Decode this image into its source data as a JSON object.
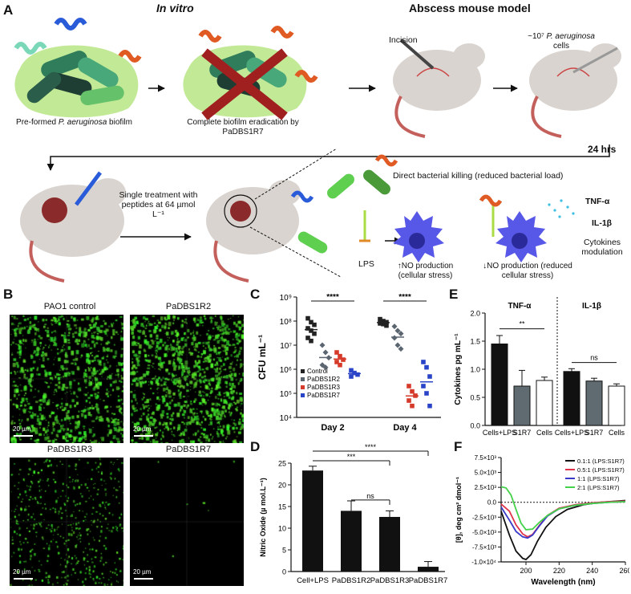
{
  "panelA": {
    "letter": "A",
    "in_vitro": "In vitro",
    "abscess_model": "Abscess mouse model",
    "biofilm_caption_1": "Pre-formed ",
    "biofilm_caption_species": "P. aeruginosa",
    "biofilm_caption_2": " biofilm",
    "eradication_caption": "Complete biofilm eradication by PaDBS1R7",
    "incision": "Incision",
    "inoculum_1": "~10⁷ ",
    "inoculum_species": "P. aeruginosa",
    "inoculum_2": "cells",
    "time": "24 hrs",
    "treatment": "Single treatment with peptides at 64 µmol L⁻¹",
    "direct_killing": "Direct bacterial killing (reduced bacterial load)",
    "lps": "LPS",
    "tnf": "TNF-α",
    "il1b": "IL-1β",
    "cytokines": "Cytokines modulation",
    "no_up": "↑NO production (cellular stress)",
    "no_down": "↓NO production (reduced cellular stress)"
  },
  "panelB": {
    "letter": "B",
    "images": [
      {
        "title": "PAO1 control",
        "scale": "20 µm"
      },
      {
        "title": "PaDBS1R2",
        "scale": "20 µm"
      },
      {
        "title": "PaDBS1R3",
        "scale": "20 µm"
      },
      {
        "title": "PaDBS1R7",
        "scale": "20 µm"
      }
    ]
  },
  "chart_data": [
    {
      "panel": "C",
      "type": "scatter",
      "ylabel": "CFU mL⁻¹",
      "yscale": "log",
      "ylim": [
        10000,
        1000000000
      ],
      "yticks": [
        "10⁴",
        "10⁵",
        "10⁶",
        "10⁷",
        "10⁸",
        "10⁹"
      ],
      "groups": [
        "Day 2",
        "Day 4"
      ],
      "significance": [
        "****",
        "****"
      ],
      "legend_position": "bottom-left",
      "series": [
        {
          "name": "Control",
          "color": "#222222",
          "marker": "square",
          "day2": [
            130000000,
            90000000,
            70000000,
            50000000,
            40000000,
            30000000,
            20000000,
            15000000
          ],
          "day4": [
            120000000,
            100000000,
            90000000,
            80000000,
            75000000,
            65000000
          ]
        },
        {
          "name": "PaDBS1R2",
          "color": "#5a6570",
          "marker": "diamond",
          "day2": [
            10000000,
            5000000,
            3000000,
            1500000,
            1200000
          ],
          "day4": [
            60000000,
            40000000,
            30000000,
            20000000,
            10000000,
            7000000
          ]
        },
        {
          "name": "PaDBS1R3",
          "color": "#d63a2a",
          "marker": "square",
          "day2": [
            5000000,
            3500000,
            2500000,
            2000000,
            1500000
          ],
          "day4": [
            200000,
            120000,
            80000,
            50000,
            30000
          ]
        },
        {
          "name": "PaDBS1R7",
          "color": "#2a44c8",
          "marker": "square",
          "day2": [
            900000,
            700000,
            600000,
            500000
          ],
          "day4": [
            2000000,
            1200000,
            500000,
            200000,
            100000,
            30000
          ]
        }
      ]
    },
    {
      "panel": "D",
      "type": "bar",
      "ylabel": "Nitric Oxide (µ mol.L⁻¹)",
      "ylim": [
        0,
        25
      ],
      "categories": [
        "Cell+LPS",
        "PaDBS1R2",
        "PaDBS1R3",
        "PaDBS1R7"
      ],
      "values": [
        23.3,
        14.0,
        12.6,
        1.1
      ],
      "errors": [
        1.0,
        2.3,
        1.4,
        1.2
      ],
      "significance": [
        {
          "from": 0,
          "to": 3,
          "label": "****"
        },
        {
          "from": 0,
          "to": 2,
          "label": "***"
        },
        {
          "from": 1,
          "to": 2,
          "label": "ns"
        }
      ]
    },
    {
      "panel": "E",
      "type": "bar",
      "ylabel": "Cytokines pg mL⁻¹",
      "ylim": [
        0,
        2.0
      ],
      "yticks": [
        0.0,
        0.5,
        1.0,
        1.5,
        2.0
      ],
      "groups": [
        {
          "name": "TNF-α",
          "categories": [
            "Cells+LPS",
            "S1R7",
            "Cells"
          ],
          "values": [
            1.45,
            0.7,
            0.8
          ],
          "errors": [
            0.15,
            0.28,
            0.06
          ]
        },
        {
          "name": "IL-1β",
          "categories": [
            "Cells+LPS",
            "S1R7",
            "Cells"
          ],
          "values": [
            0.96,
            0.79,
            0.7
          ],
          "errors": [
            0.05,
            0.05,
            0.04
          ]
        }
      ],
      "bar_colors": [
        "#111111",
        "#5f6b70",
        "#ffffff"
      ],
      "significance": [
        {
          "group": 0,
          "from": 0,
          "to": 2,
          "label": "**"
        },
        {
          "group": 1,
          "from": 0,
          "to": 2,
          "label": "ns"
        }
      ]
    },
    {
      "panel": "F",
      "type": "line",
      "xlabel": "Wavelength (nm)",
      "ylabel": "[θ], deg cm² dmol⁻¹",
      "xlim": [
        185,
        260
      ],
      "ylim": [
        -10000,
        7500
      ],
      "xticks": [
        200,
        220,
        240,
        260
      ],
      "yticks": [
        "-1.0×10⁴",
        "-7.5×10³",
        "-5.0×10³",
        "-2.5×10³",
        "0.0",
        "2.5×10³",
        "5.0×10³",
        "7.5×10³"
      ],
      "legend_position": "top-right",
      "series": [
        {
          "name": "0.1:1 (LPS:S1R7)",
          "color": "#111111",
          "x": [
            185,
            190,
            194,
            198,
            200,
            203,
            207,
            212,
            218,
            225,
            235,
            245,
            255,
            260
          ],
          "y": [
            -1500,
            -5500,
            -8200,
            -9400,
            -9600,
            -8800,
            -6500,
            -4200,
            -2400,
            -1200,
            -400,
            0,
            200,
            300
          ]
        },
        {
          "name": "0.5:1 (LPS:S1R7)",
          "color": "#e0334a",
          "x": [
            185,
            190,
            194,
            198,
            201,
            204,
            208,
            213,
            220,
            230,
            240,
            250,
            260
          ],
          "y": [
            -300,
            -1500,
            -3800,
            -5300,
            -5800,
            -5400,
            -3900,
            -2200,
            -1000,
            -400,
            -100,
            100,
            200
          ]
        },
        {
          "name": "1:1 (LPS:S1R7)",
          "color": "#3a3ac8",
          "x": [
            185,
            190,
            194,
            198,
            201,
            204,
            208,
            213,
            220,
            230,
            240,
            250,
            260
          ],
          "y": [
            -800,
            -3000,
            -4900,
            -5800,
            -6000,
            -5500,
            -4000,
            -2300,
            -1100,
            -500,
            -200,
            0,
            100
          ]
        },
        {
          "name": "2:1 (LPS:S1R7)",
          "color": "#44d24a",
          "x": [
            185,
            188,
            191,
            194,
            197,
            200,
            204,
            208,
            213,
            220,
            230,
            240,
            250,
            260
          ],
          "y": [
            2600,
            2400,
            1200,
            -1200,
            -3500,
            -4600,
            -4500,
            -3400,
            -2200,
            -1100,
            -500,
            -200,
            0,
            100
          ]
        }
      ]
    }
  ]
}
